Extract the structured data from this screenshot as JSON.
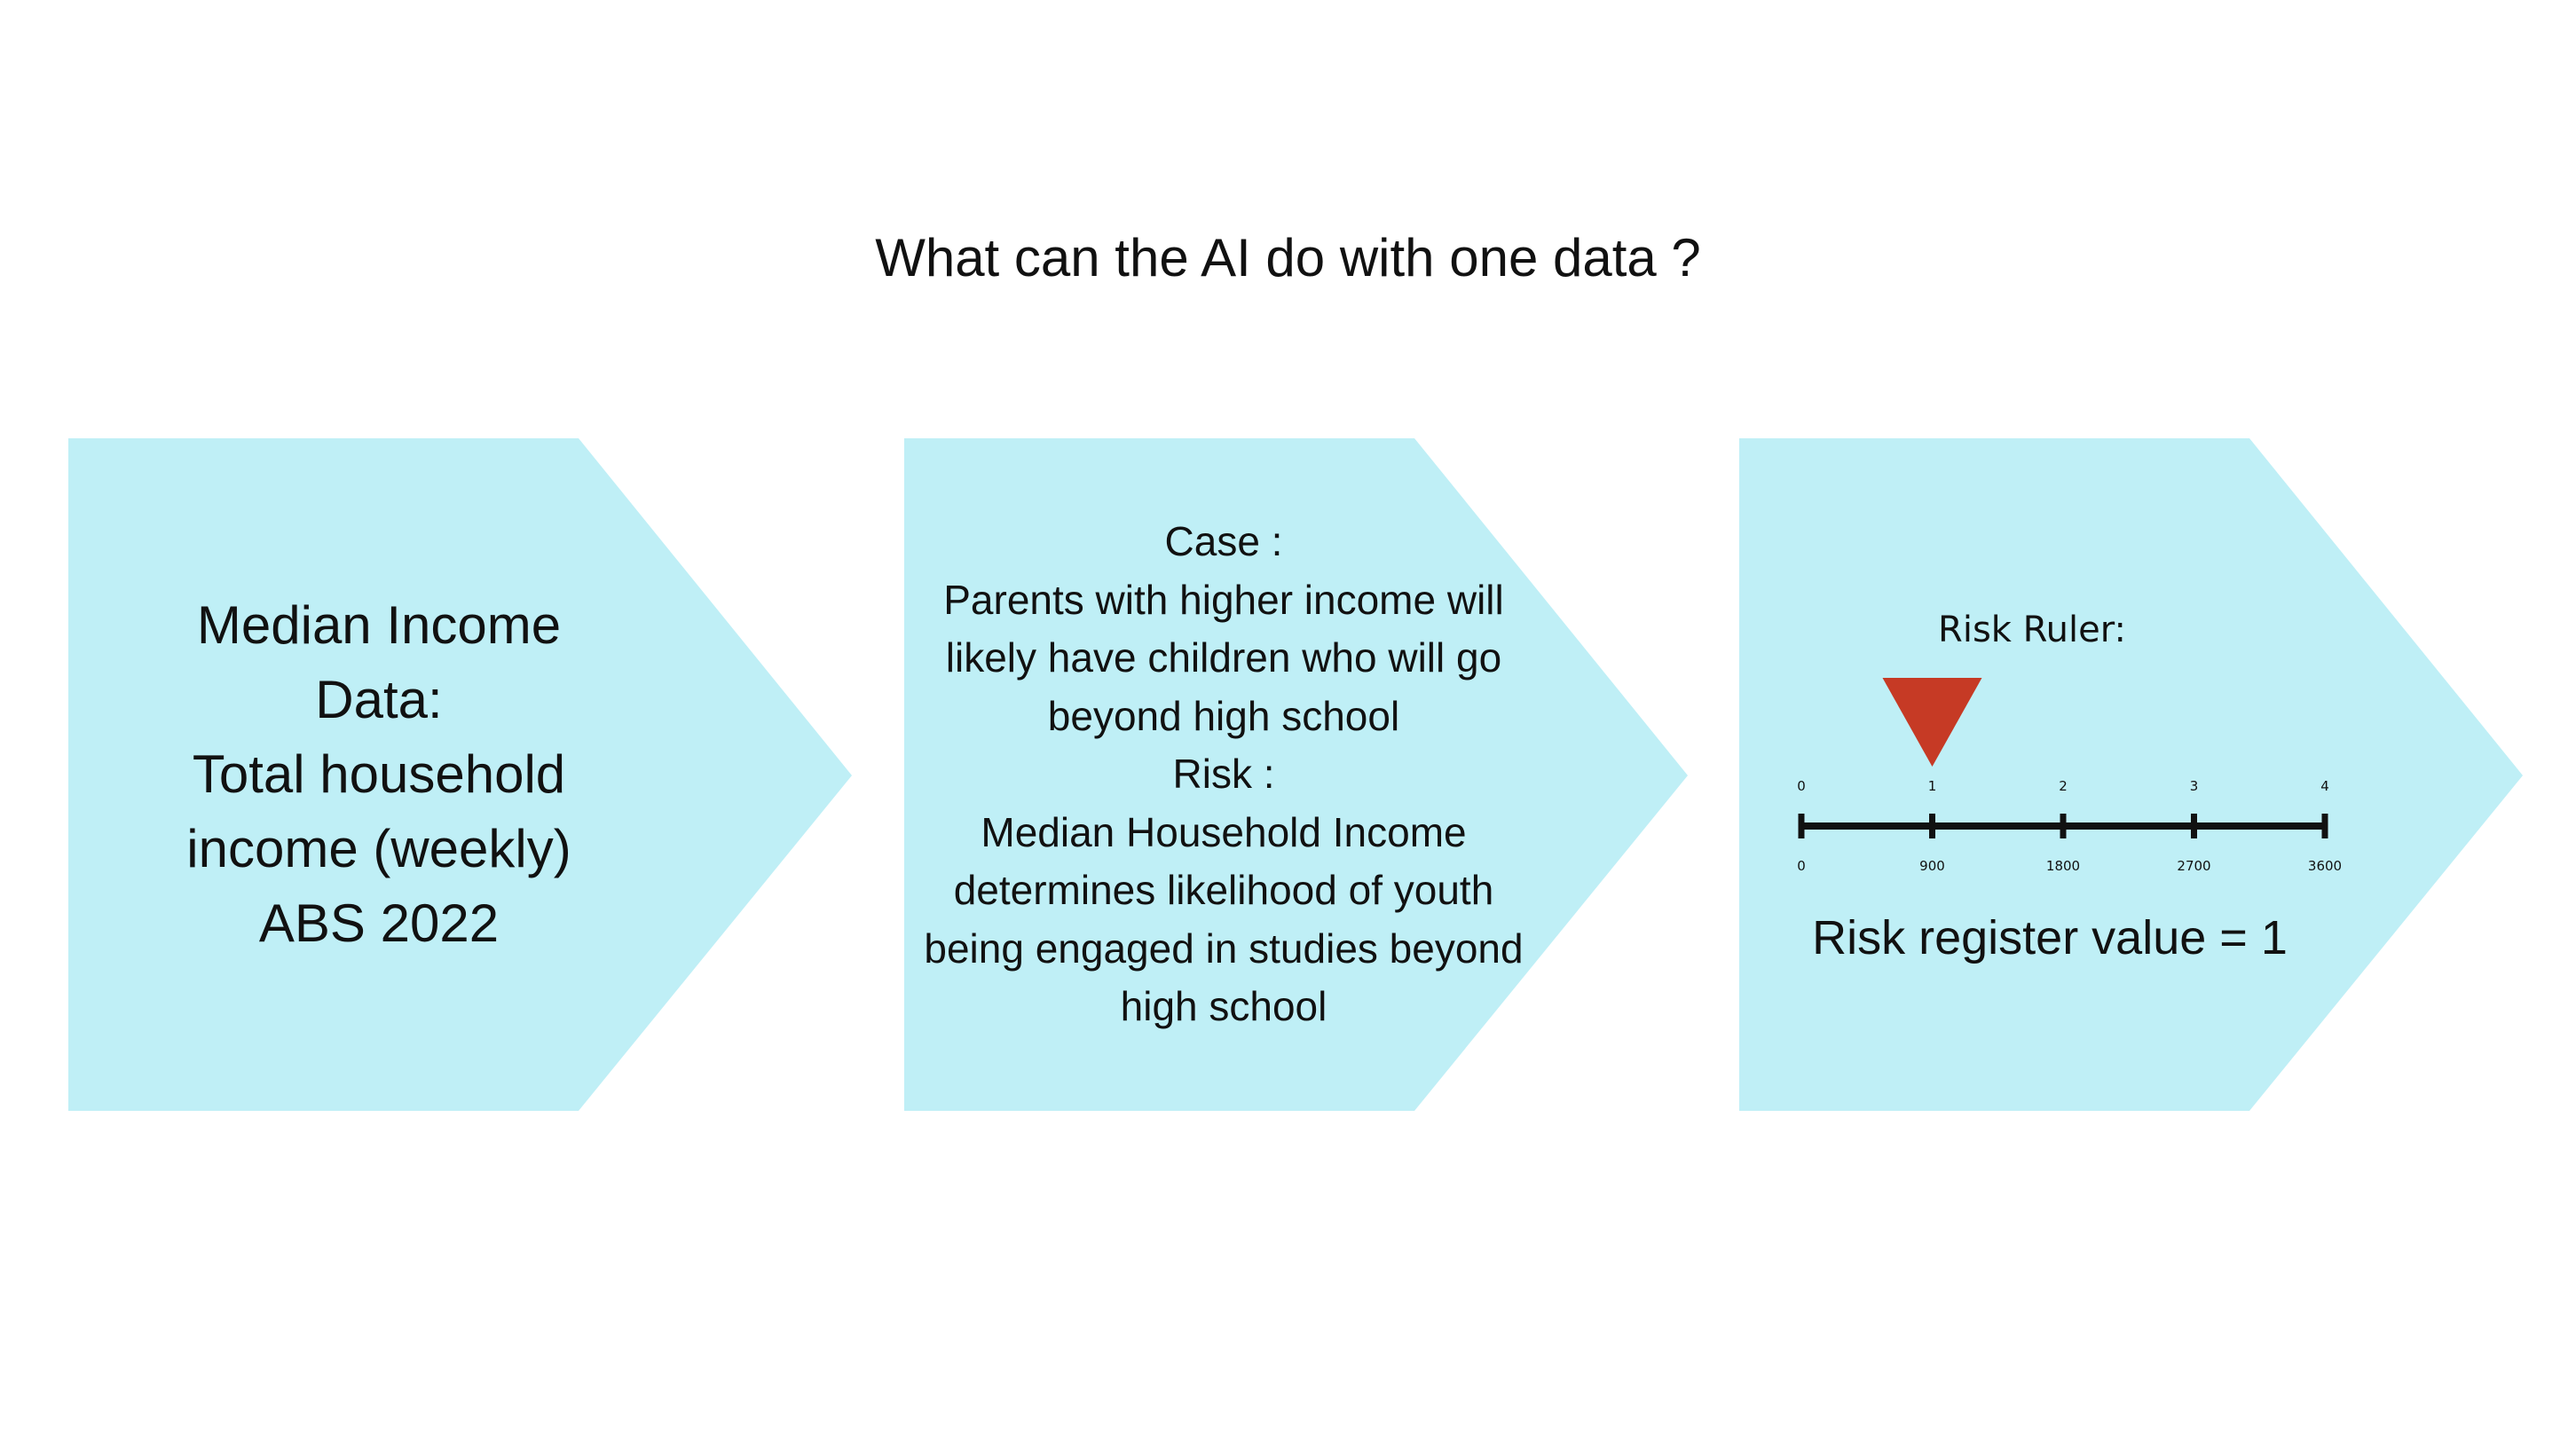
{
  "title": "What can the AI do with one data ?",
  "colors": {
    "panel": "#bfeff6",
    "marker": "#c63a25",
    "ruler": "#111111"
  },
  "panel1": {
    "lines": [
      "Median Income",
      "Data:",
      "Total household",
      "income (weekly)",
      "ABS 2022"
    ]
  },
  "panel2": {
    "lines": [
      "Case :",
      "Parents with higher income will",
      "likely have children who will go",
      "beyond high school",
      "Risk :",
      "Median Household Income",
      "determines likelihood of youth",
      "being engaged in studies beyond",
      "high school"
    ]
  },
  "panel3": {
    "ruler_title": "Risk Ruler:",
    "risk_levels": [
      "0",
      "1",
      "2",
      "3",
      "4"
    ],
    "income_values": [
      "0",
      "900",
      "1800",
      "2700",
      "3600"
    ],
    "marker_level": 1,
    "risk_value_text": "Risk register value = 1"
  }
}
